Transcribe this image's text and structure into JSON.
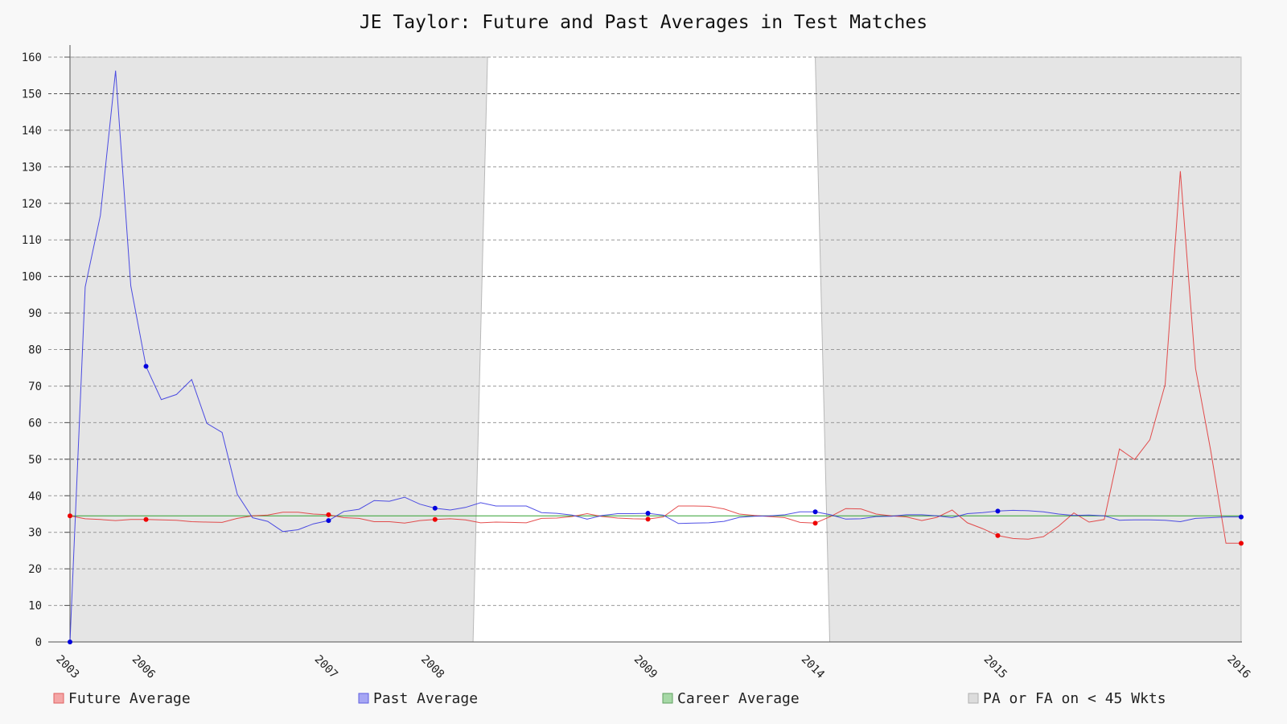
{
  "chart_data": {
    "type": "line",
    "title": "JE Taylor: Future and Past Averages in Test Matches",
    "xlabel": "",
    "ylabel": "",
    "ylim": [
      0,
      160
    ],
    "yticks": [
      "0",
      "10",
      "20",
      "30",
      "40",
      "50",
      "60",
      "70",
      "80",
      "90",
      "100",
      "110",
      "120",
      "130",
      "140",
      "150",
      "160"
    ],
    "x_tick_labels": [
      {
        "label": "2003",
        "index": 0
      },
      {
        "label": "2006",
        "index": 5
      },
      {
        "label": "2007",
        "index": 17
      },
      {
        "label": "2008",
        "index": 24
      },
      {
        "label": "2009",
        "index": 38
      },
      {
        "label": "2014",
        "index": 49
      },
      {
        "label": "2015",
        "index": 61
      },
      {
        "label": "2016",
        "index": 77
      }
    ],
    "n_points": 78,
    "grid": "horizontal dashed",
    "legend_position": "bottom",
    "shaded_regions": [
      {
        "name": "PA or FA on < 45 Wkts",
        "from_index": 0,
        "to_index": 26.5
      },
      {
        "name": "PA or FA on < 45 Wkts",
        "from_index": 49,
        "to_index": 77
      }
    ],
    "career_average": 34.5,
    "series": [
      {
        "name": "Future Average",
        "color": "#e03030",
        "marker_indices": [
          0,
          5,
          17,
          24,
          38,
          49,
          61,
          77
        ],
        "values": [
          34.5,
          33.7,
          33.5,
          33.2,
          33.5,
          33.5,
          33.4,
          33.3,
          32.9,
          32.8,
          32.7,
          33.8,
          34.5,
          34.7,
          35.5,
          35.5,
          35.0,
          34.8,
          34.0,
          33.8,
          32.9,
          32.9,
          32.5,
          33.2,
          33.5,
          33.7,
          33.4,
          32.6,
          32.8,
          32.7,
          32.6,
          33.8,
          33.9,
          34.3,
          35.1,
          34.3,
          33.9,
          33.7,
          33.6,
          34.2,
          37.2,
          37.2,
          37.1,
          36.4,
          35.0,
          34.6,
          34.3,
          34.0,
          32.7,
          32.5,
          34.3,
          36.5,
          36.4,
          35.0,
          34.5,
          34.2,
          33.2,
          34.1,
          36.1,
          32.6,
          31.0,
          29.1,
          28.3,
          28.1,
          28.8,
          31.7,
          35.3,
          32.8,
          33.5,
          52.8,
          49.9,
          55.3,
          70.4,
          128.8,
          74.8,
          52.3,
          27.0,
          27.0
        ]
      },
      {
        "name": "Past Average",
        "color": "#3030e0",
        "marker_indices": [
          0,
          5,
          17,
          24,
          38,
          49,
          61,
          77
        ],
        "values": [
          0,
          97.1,
          116.7,
          156.3,
          97.4,
          75.4,
          66.3,
          67.7,
          71.8,
          59.8,
          57.3,
          40.4,
          34.0,
          33.0,
          30.2,
          30.7,
          32.3,
          33.2,
          35.7,
          36.3,
          38.7,
          38.5,
          39.6,
          37.7,
          36.6,
          36.1,
          36.8,
          38.1,
          37.2,
          37.2,
          37.2,
          35.4,
          35.2,
          34.7,
          33.6,
          34.6,
          35.1,
          35.1,
          35.2,
          34.7,
          32.4,
          32.5,
          32.6,
          33.0,
          34.1,
          34.4,
          34.5,
          34.8,
          35.6,
          35.6,
          34.8,
          33.6,
          33.7,
          34.3,
          34.4,
          34.8,
          34.8,
          34.5,
          34.0,
          35.1,
          35.4,
          35.8,
          36.0,
          35.9,
          35.6,
          35.0,
          34.6,
          34.7,
          34.5,
          33.3,
          33.4,
          33.4,
          33.3,
          32.9,
          33.8,
          34.0,
          34.2,
          34.2
        ]
      },
      {
        "name": "Career Average",
        "color": "#30a030"
      }
    ]
  },
  "legend": {
    "items": [
      {
        "label": "Future Average",
        "fill": "#f4a6a6",
        "stroke": "#e06060"
      },
      {
        "label": "Past Average",
        "fill": "#a6a6f4",
        "stroke": "#6060e0"
      },
      {
        "label": "Career Average",
        "fill": "#a6d8a6",
        "stroke": "#60a060"
      },
      {
        "label": "PA or FA on < 45 Wkts",
        "fill": "#dcdcdc",
        "stroke": "#b0b0b0"
      }
    ]
  },
  "colors": {
    "background": "#f8f8f8",
    "plot_background": "#ffffff",
    "shade": "#e5e5e5"
  }
}
